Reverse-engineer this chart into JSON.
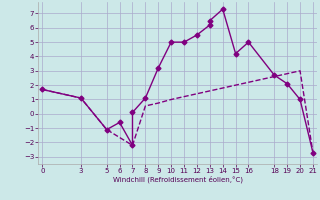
{
  "xlabel": "Windchill (Refroidissement éolien,°C)",
  "line1_x": [
    0,
    3,
    5,
    6,
    7,
    7,
    8,
    9,
    10,
    11,
    12,
    13,
    13,
    14,
    15,
    16,
    18,
    19,
    20,
    21
  ],
  "line1_y": [
    1.7,
    1.1,
    -1.1,
    -0.6,
    -2.2,
    0.1,
    1.1,
    3.2,
    5.0,
    5.0,
    5.5,
    6.2,
    6.5,
    7.3,
    4.2,
    5.0,
    2.7,
    2.1,
    1.0,
    -2.7
  ],
  "line2_x": [
    0,
    3,
    5,
    7,
    8,
    9,
    10,
    11,
    12,
    13,
    14,
    15,
    16,
    18,
    19,
    20,
    21
  ],
  "line2_y": [
    1.7,
    1.1,
    -1.1,
    -2.2,
    0.55,
    0.75,
    1.0,
    1.2,
    1.4,
    1.6,
    1.8,
    2.0,
    2.2,
    2.6,
    2.8,
    3.0,
    -2.7
  ],
  "line_color": "#800080",
  "bg_color": "#cce8e8",
  "grid_color": "#aaaacc",
  "ylim": [
    -3.5,
    7.8
  ],
  "xlim": [
    -0.3,
    21.3
  ],
  "yticks": [
    -3,
    -2,
    -1,
    0,
    1,
    2,
    3,
    4,
    5,
    6,
    7
  ],
  "xticks": [
    0,
    3,
    5,
    6,
    7,
    8,
    9,
    10,
    11,
    12,
    13,
    14,
    15,
    16,
    18,
    19,
    20,
    21
  ],
  "marker": "D",
  "markersize": 2.5,
  "linewidth": 1.0
}
